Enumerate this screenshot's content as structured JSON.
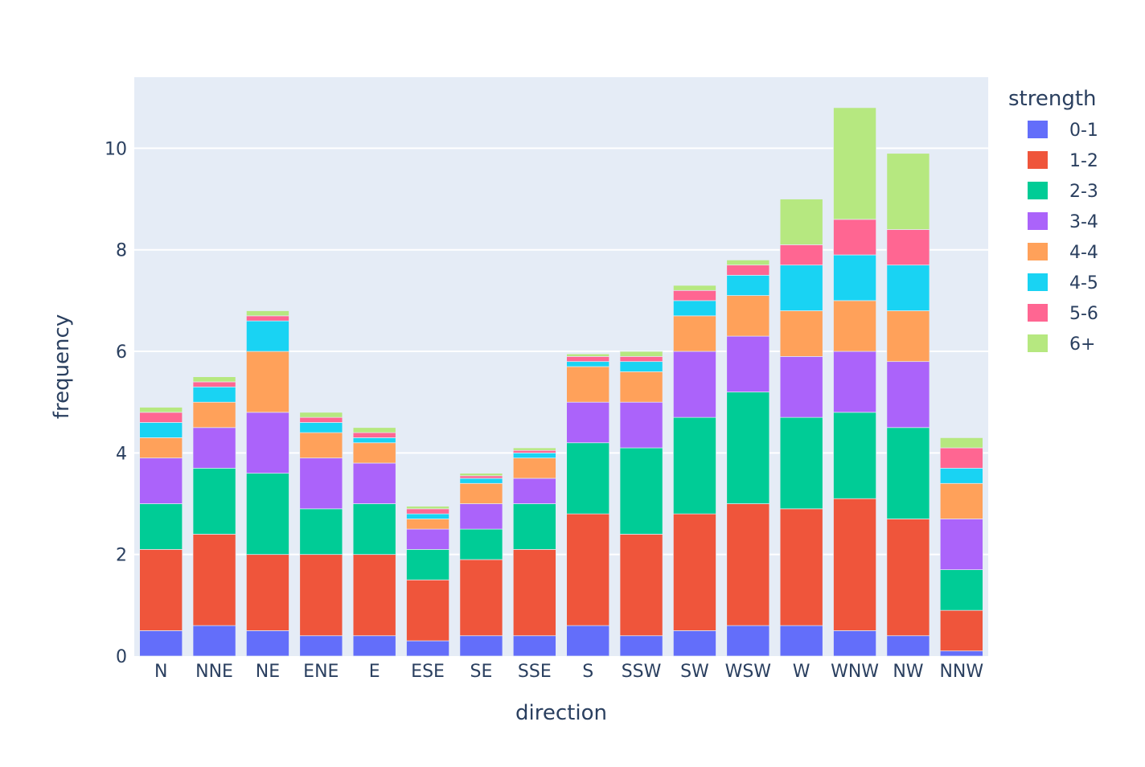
{
  "chart_data": {
    "type": "bar",
    "stacked": true,
    "xlabel": "direction",
    "ylabel": "frequency",
    "ylim": [
      0,
      11.4
    ],
    "yticks": [
      0,
      2,
      4,
      6,
      8,
      10
    ],
    "grid": true,
    "legend_title": "strength",
    "legend_position": "top-right",
    "plot_background": "#e5ecf6",
    "categories": [
      "N",
      "NNE",
      "NE",
      "ENE",
      "E",
      "ESE",
      "SE",
      "SSE",
      "S",
      "SSW",
      "SW",
      "WSW",
      "W",
      "WNW",
      "NW",
      "NNW"
    ],
    "series": [
      {
        "name": "0-1",
        "color": "#636efa",
        "values": [
          0.5,
          0.6,
          0.5,
          0.4,
          0.4,
          0.3,
          0.4,
          0.4,
          0.6,
          0.4,
          0.5,
          0.6,
          0.6,
          0.5,
          0.4,
          0.1
        ]
      },
      {
        "name": "1-2",
        "color": "#EF553B",
        "values": [
          1.6,
          1.8,
          1.5,
          1.6,
          1.6,
          1.2,
          1.5,
          1.7,
          2.2,
          2.0,
          2.3,
          2.4,
          2.3,
          2.6,
          2.3,
          0.8
        ]
      },
      {
        "name": "2-3",
        "color": "#00cc96",
        "values": [
          0.9,
          1.3,
          1.6,
          0.9,
          1.0,
          0.6,
          0.6,
          0.9,
          1.4,
          1.7,
          1.9,
          2.2,
          1.8,
          1.7,
          1.8,
          0.8
        ]
      },
      {
        "name": "3-4",
        "color": "#ab63fa",
        "values": [
          0.9,
          0.8,
          1.2,
          1.0,
          0.8,
          0.4,
          0.5,
          0.5,
          0.8,
          0.9,
          1.3,
          1.1,
          1.2,
          1.2,
          1.3,
          1.0
        ]
      },
      {
        "name": "4-4",
        "color": "#FFA15A",
        "values": [
          0.4,
          0.5,
          1.2,
          0.5,
          0.4,
          0.2,
          0.4,
          0.4,
          0.7,
          0.6,
          0.7,
          0.8,
          0.9,
          1.0,
          1.0,
          0.7
        ]
      },
      {
        "name": "4-5",
        "color": "#19d3f3",
        "values": [
          0.3,
          0.3,
          0.6,
          0.2,
          0.1,
          0.1,
          0.1,
          0.1,
          0.1,
          0.2,
          0.3,
          0.4,
          0.9,
          0.9,
          0.9,
          0.3
        ]
      },
      {
        "name": "5-6",
        "color": "#FF6692",
        "values": [
          0.2,
          0.1,
          0.1,
          0.1,
          0.1,
          0.1,
          0.05,
          0.05,
          0.1,
          0.1,
          0.2,
          0.2,
          0.4,
          0.7,
          0.7,
          0.4
        ]
      },
      {
        "name": "6+",
        "color": "#B6E880",
        "values": [
          0.1,
          0.1,
          0.1,
          0.1,
          0.1,
          0.05,
          0.05,
          0.05,
          0.05,
          0.1,
          0.1,
          0.1,
          0.9,
          2.2,
          1.5,
          0.2
        ]
      }
    ]
  }
}
